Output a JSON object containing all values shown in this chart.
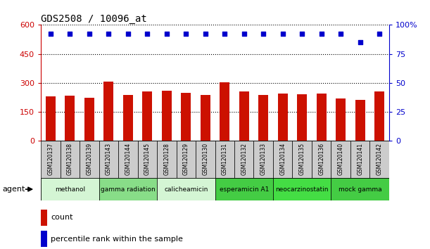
{
  "title": "GDS2508 / 10096_at",
  "samples": [
    "GSM120137",
    "GSM120138",
    "GSM120139",
    "GSM120143",
    "GSM120144",
    "GSM120145",
    "GSM120128",
    "GSM120129",
    "GSM120130",
    "GSM120131",
    "GSM120132",
    "GSM120133",
    "GSM120134",
    "GSM120135",
    "GSM120136",
    "GSM120140",
    "GSM120141",
    "GSM120142"
  ],
  "counts": [
    230,
    232,
    222,
    307,
    238,
    256,
    258,
    247,
    236,
    302,
    254,
    237,
    243,
    240,
    243,
    218,
    210,
    256
  ],
  "percentile_y_values": [
    555,
    555,
    555,
    555,
    555,
    555,
    555,
    555,
    555,
    555,
    555,
    555,
    555,
    555,
    555,
    555,
    510,
    555
  ],
  "agents": [
    {
      "label": "methanol",
      "start": 0,
      "end": 3,
      "color": "#d4f5d4"
    },
    {
      "label": "gamma radiation",
      "start": 3,
      "end": 6,
      "color": "#88dd88"
    },
    {
      "label": "calicheamicin",
      "start": 6,
      "end": 9,
      "color": "#d4f5d4"
    },
    {
      "label": "esperamicin A1",
      "start": 9,
      "end": 12,
      "color": "#44cc44"
    },
    {
      "label": "neocarzinostatin",
      "start": 12,
      "end": 15,
      "color": "#44dd44"
    },
    {
      "label": "mock gamma",
      "start": 15,
      "end": 18,
      "color": "#44cc44"
    }
  ],
  "ylim_left": [
    0,
    600
  ],
  "ylim_right": [
    0,
    100
  ],
  "left_ticks": [
    0,
    150,
    300,
    450,
    600
  ],
  "right_ticks": [
    0,
    25,
    50,
    75,
    100
  ],
  "bar_color": "#cc1100",
  "dot_color": "#0000cc",
  "background_color": "#ffffff",
  "left_tick_color": "#cc0000",
  "right_tick_color": "#0000cc",
  "agent_label": "agent",
  "legend_count": "count",
  "legend_percentile": "percentile rank within the sample",
  "label_bg": "#cccccc"
}
